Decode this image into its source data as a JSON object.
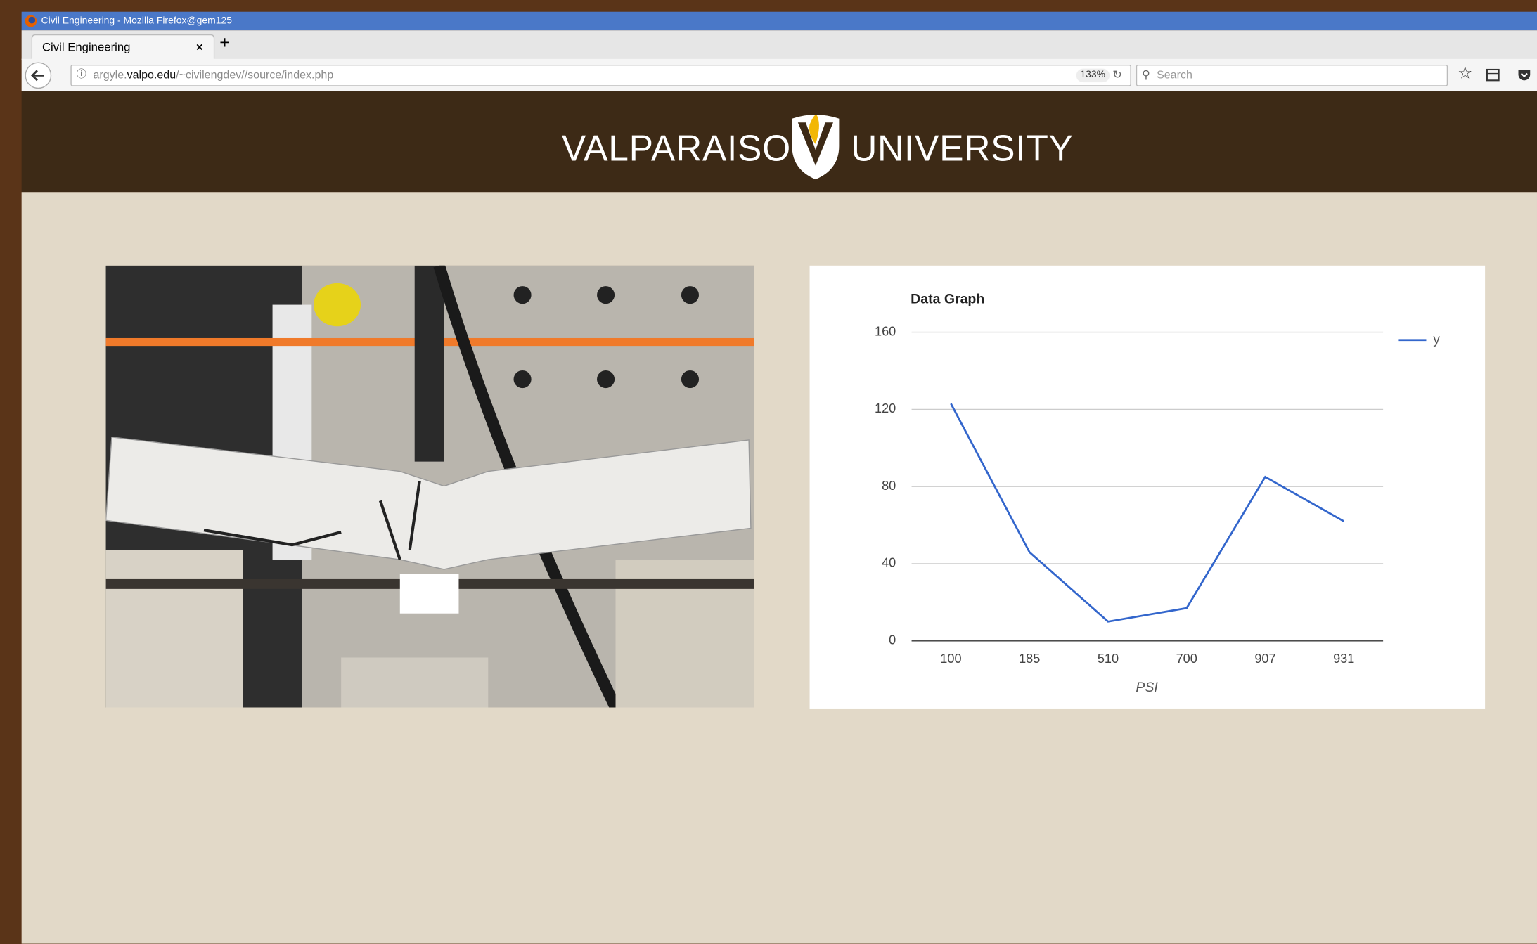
{
  "browser": {
    "window_title": "Civil Engineering - Mozilla Firefox@gem125",
    "tab_title": "Civil Engineering",
    "url": {
      "subdomain": "argyle.",
      "domain": "valpo.edu",
      "path": "/~civilengdev//source/index.php"
    },
    "zoom": "133%",
    "search_placeholder": "Search"
  },
  "header": {
    "left_word": "VALPARAISO",
    "right_word": "UNIVERSITY"
  },
  "chart_data": {
    "type": "line",
    "title": "Data Graph",
    "categories": [
      "100",
      "185",
      "510",
      "700",
      "907",
      "931"
    ],
    "series": [
      {
        "name": "y",
        "color": "#3366cc",
        "values": [
          123,
          46,
          10,
          17,
          85,
          62
        ]
      }
    ],
    "x_label": "PSI",
    "ylim": [
      0,
      160
    ],
    "yticks": [
      0,
      40,
      80,
      120,
      160
    ],
    "grid": true,
    "legend": "right"
  }
}
